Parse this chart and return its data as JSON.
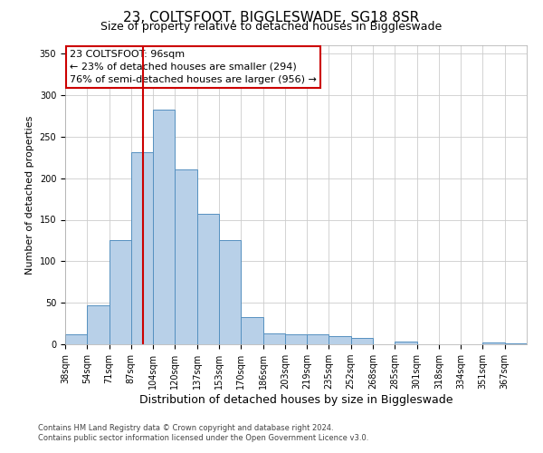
{
  "title": "23, COLTSFOOT, BIGGLESWADE, SG18 8SR",
  "subtitle": "Size of property relative to detached houses in Biggleswade",
  "xlabel": "Distribution of detached houses by size in Biggleswade",
  "ylabel": "Number of detached properties",
  "bin_labels": [
    "38sqm",
    "54sqm",
    "71sqm",
    "87sqm",
    "104sqm",
    "120sqm",
    "137sqm",
    "153sqm",
    "170sqm",
    "186sqm",
    "203sqm",
    "219sqm",
    "235sqm",
    "252sqm",
    "268sqm",
    "285sqm",
    "301sqm",
    "318sqm",
    "334sqm",
    "351sqm",
    "367sqm"
  ],
  "bar_heights": [
    12,
    47,
    126,
    231,
    283,
    210,
    157,
    125,
    33,
    13,
    12,
    12,
    10,
    8,
    0,
    3,
    0,
    0,
    0,
    2,
    1
  ],
  "bar_color": "#b8d0e8",
  "bar_edge_color": "#5590c0",
  "vline_color": "#cc0000",
  "vline_pos": 3.56,
  "annotation_title": "23 COLTSFOOT: 96sqm",
  "annotation_line1": "← 23% of detached houses are smaller (294)",
  "annotation_line2": "76% of semi-detached houses are larger (956) →",
  "annotation_box_edge_color": "#cc0000",
  "ylim": [
    0,
    360
  ],
  "yticks": [
    0,
    50,
    100,
    150,
    200,
    250,
    300,
    350
  ],
  "footnote1": "Contains HM Land Registry data © Crown copyright and database right 2024.",
  "footnote2": "Contains public sector information licensed under the Open Government Licence v3.0.",
  "background_color": "#ffffff",
  "grid_color": "#cccccc",
  "title_fontsize": 11,
  "subtitle_fontsize": 9,
  "xlabel_fontsize": 9,
  "ylabel_fontsize": 8,
  "tick_fontsize": 7,
  "annot_fontsize": 8,
  "footnote_fontsize": 6
}
